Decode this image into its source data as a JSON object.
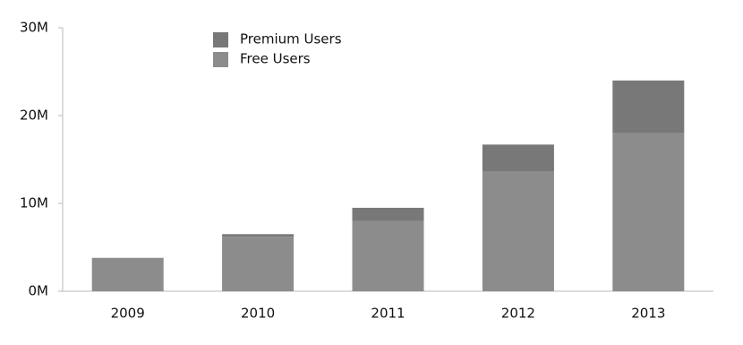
{
  "chart_data": {
    "type": "stacked_bar",
    "categories": [
      "2009",
      "2010",
      "2011",
      "2012",
      "2013"
    ],
    "series": [
      {
        "name": "Free Users",
        "color": "#8c8c8c",
        "values": [
          3.8,
          6.2,
          8.0,
          13.6,
          18.0
        ]
      },
      {
        "name": "Premium Users",
        "color": "#787878",
        "values": [
          0,
          0.3,
          1.5,
          3.1,
          6.0
        ]
      }
    ],
    "ylim": [
      0,
      30
    ],
    "yticks": [
      {
        "value": 0,
        "label": "0M"
      },
      {
        "value": 10,
        "label": "10M"
      },
      {
        "value": 20,
        "label": "20M"
      },
      {
        "value": 30,
        "label": "30M"
      }
    ],
    "grid": false
  }
}
